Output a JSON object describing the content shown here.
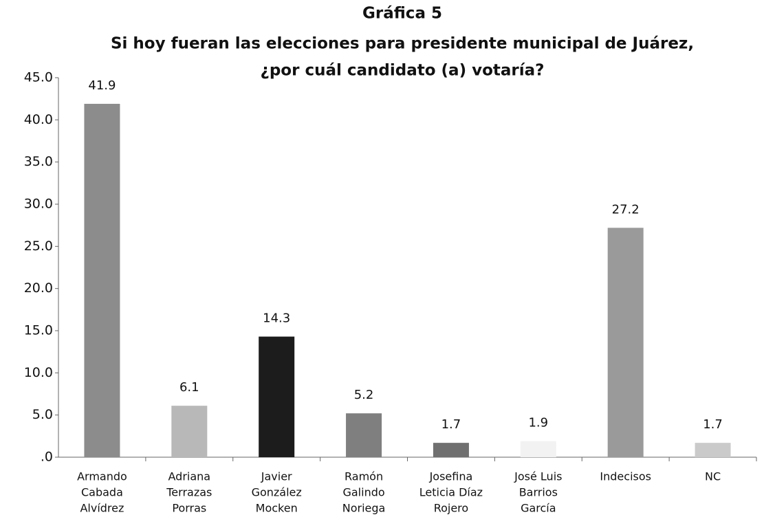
{
  "chart_data": {
    "type": "bar",
    "title": "Gráfica 5",
    "subtitle": [
      "Si hoy fueran las elecciones para presidente municipal de Juárez,",
      "¿por cuál candidato (a) votaría?"
    ],
    "categories": [
      [
        "Armando",
        "Cabada",
        "Alvídrez"
      ],
      [
        "Adriana",
        "Terrazas",
        "Porras"
      ],
      [
        "Javier",
        "González",
        "Mocken"
      ],
      [
        "Ramón",
        "Galindo",
        "Noriega"
      ],
      [
        "Josefina",
        "Leticia Díaz",
        "Rojero"
      ],
      [
        "José Luis",
        "Barrios",
        "García"
      ],
      [
        "Indecisos"
      ],
      [
        "NC"
      ]
    ],
    "values": [
      41.9,
      6.1,
      14.3,
      5.2,
      1.7,
      1.9,
      27.2,
      1.7
    ],
    "colors": [
      "#8c8c8c",
      "#b8b8b8",
      "#1c1c1c",
      "#7f7f7f",
      "#707070",
      "#f2f2f2",
      "#9a9a9a",
      "#cacaca"
    ],
    "ylim": [
      0,
      45
    ],
    "yticks": [
      {
        "value": 0,
        "label": ".0"
      },
      {
        "value": 5,
        "label": "5.0"
      },
      {
        "value": 10,
        "label": "10.0"
      },
      {
        "value": 15,
        "label": "15.0"
      },
      {
        "value": 20,
        "label": "20.0"
      },
      {
        "value": 25,
        "label": "25.0"
      },
      {
        "value": 30,
        "label": "30.0"
      },
      {
        "value": 35,
        "label": "35.0"
      },
      {
        "value": 40,
        "label": "40.0"
      },
      {
        "value": 45,
        "label": "45.0"
      }
    ],
    "grid": false
  }
}
